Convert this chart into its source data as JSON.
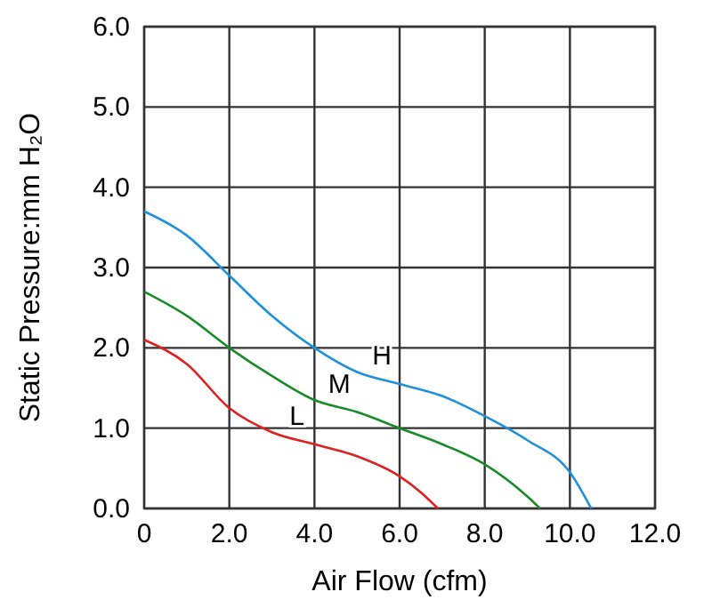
{
  "chart_data": {
    "type": "line",
    "xlabel": "Air Flow (cfm)",
    "ylabel": "Static Pressure:mm H₂O",
    "xlim": [
      0,
      12
    ],
    "ylim": [
      0,
      6
    ],
    "xticks": [
      0,
      {
        "value": 2,
        "label": "2.0"
      },
      {
        "value": 4,
        "label": "4.0"
      },
      {
        "value": 6,
        "label": "6.0"
      },
      {
        "value": 8,
        "label": "8.0"
      },
      {
        "value": 10,
        "label": "10.0"
      },
      {
        "value": 12,
        "label": "12.0"
      }
    ],
    "yticks": [
      {
        "value": 0,
        "label": "0.0"
      },
      {
        "value": 1,
        "label": "1.0"
      },
      {
        "value": 2,
        "label": "2.0"
      },
      {
        "value": 3,
        "label": "3.0"
      },
      {
        "value": 4,
        "label": "4.0"
      },
      {
        "value": 5,
        "label": "5.0"
      },
      {
        "value": 6,
        "label": "6.0"
      }
    ],
    "grid": true,
    "marker": "none",
    "line_style": "solid",
    "series": [
      {
        "name": "H",
        "color": "#1e90dc",
        "x": [
          0,
          1,
          2,
          3,
          4,
          5,
          6,
          7,
          8,
          9,
          10,
          10.5
        ],
        "values": [
          3.7,
          3.4,
          2.9,
          2.4,
          2.0,
          1.7,
          1.55,
          1.4,
          1.15,
          0.85,
          0.45,
          0
        ]
      },
      {
        "name": "M",
        "color": "#1a8a2a",
        "x": [
          0,
          1,
          2,
          3,
          4,
          5,
          6,
          7,
          8,
          9,
          9.3
        ],
        "values": [
          2.7,
          2.4,
          2.0,
          1.65,
          1.35,
          1.2,
          1.0,
          0.8,
          0.55,
          0.15,
          0
        ]
      },
      {
        "name": "L",
        "color": "#e02020",
        "x": [
          0,
          1,
          2,
          3,
          4,
          5,
          6,
          6.5,
          6.9
        ],
        "values": [
          2.1,
          1.8,
          1.25,
          0.95,
          0.8,
          0.65,
          0.4,
          0.2,
          0
        ]
      }
    ]
  }
}
